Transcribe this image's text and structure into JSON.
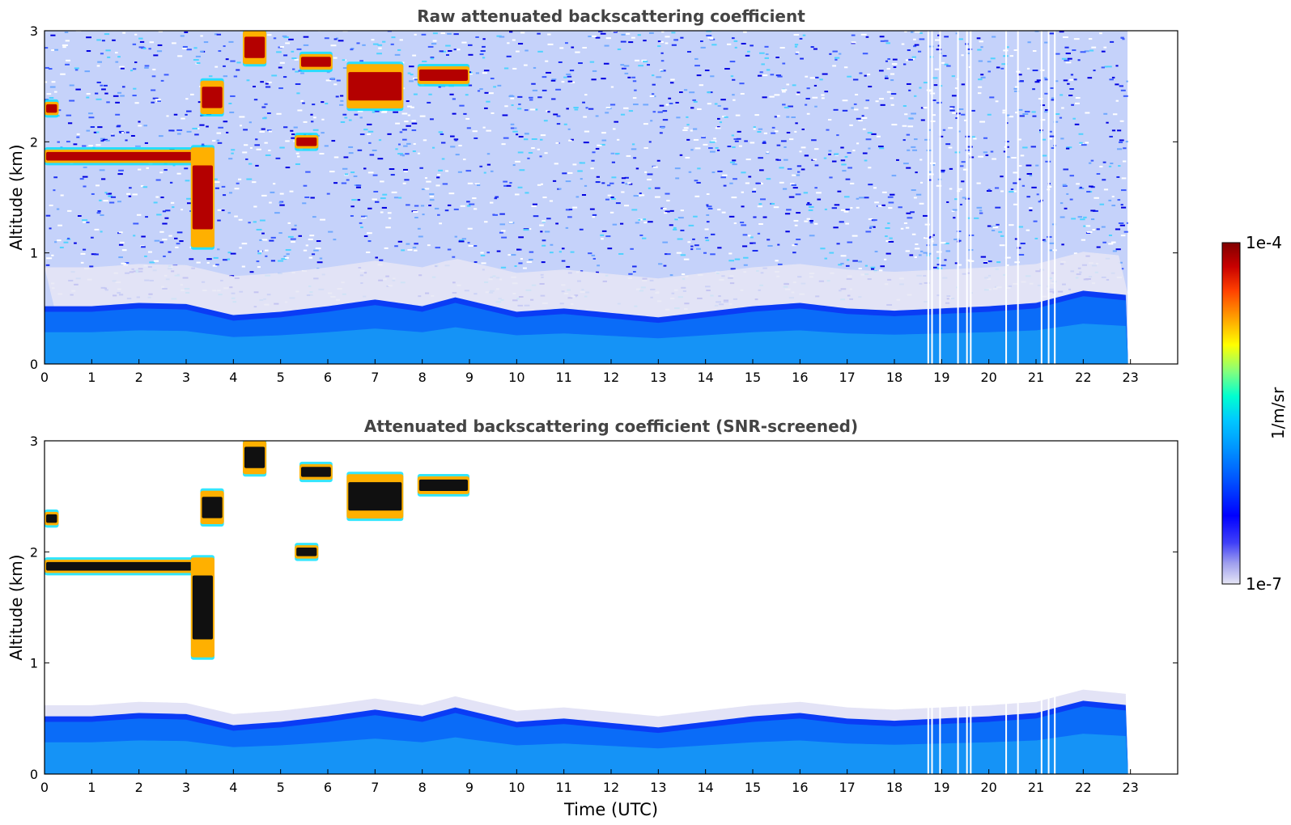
{
  "chart_data": [
    {
      "type": "heatmap",
      "title": "Raw attenuated backscattering coefficient",
      "xlabel": "",
      "ylabel": "Altitude (km)",
      "xlim": [
        0,
        24
      ],
      "ylim": [
        0,
        3
      ],
      "x_ticks": [
        "0",
        "1",
        "2",
        "3",
        "4",
        "5",
        "6",
        "7",
        "8",
        "9",
        "10",
        "11",
        "12",
        "13",
        "14",
        "15",
        "16",
        "17",
        "18",
        "19",
        "20",
        "21",
        "22",
        "23"
      ],
      "y_ticks": [
        "0",
        "1",
        "2",
        "3"
      ],
      "data_end_time_utc": 22.95,
      "boundary_layer_top_km": [
        {
          "t": 0,
          "z": 0.52
        },
        {
          "t": 1,
          "z": 0.52
        },
        {
          "t": 2,
          "z": 0.55
        },
        {
          "t": 3,
          "z": 0.54
        },
        {
          "t": 4,
          "z": 0.44
        },
        {
          "t": 5,
          "z": 0.47
        },
        {
          "t": 6,
          "z": 0.52
        },
        {
          "t": 7,
          "z": 0.58
        },
        {
          "t": 8,
          "z": 0.52
        },
        {
          "t": 8.7,
          "z": 0.6
        },
        {
          "t": 10,
          "z": 0.47
        },
        {
          "t": 11,
          "z": 0.5
        },
        {
          "t": 12,
          "z": 0.46
        },
        {
          "t": 13,
          "z": 0.42
        },
        {
          "t": 14,
          "z": 0.47
        },
        {
          "t": 15,
          "z": 0.52
        },
        {
          "t": 16,
          "z": 0.55
        },
        {
          "t": 17,
          "z": 0.5
        },
        {
          "t": 18,
          "z": 0.48
        },
        {
          "t": 19,
          "z": 0.5
        },
        {
          "t": 20,
          "z": 0.52
        },
        {
          "t": 21,
          "z": 0.55
        },
        {
          "t": 22,
          "z": 0.66
        },
        {
          "t": 22.95,
          "z": 0.62
        }
      ],
      "cloud_layers": [
        {
          "t0": 0.0,
          "t1": 3.15,
          "z": 1.87,
          "thickness": 0.12
        },
        {
          "t0": 0.0,
          "t1": 0.3,
          "z": 2.3,
          "thickness": 0.12
        },
        {
          "t0": 3.1,
          "t1": 3.6,
          "z": 1.5,
          "thickness": 0.9
        },
        {
          "t0": 3.3,
          "t1": 3.8,
          "z": 2.4,
          "thickness": 0.3
        },
        {
          "t0": 4.2,
          "t1": 4.7,
          "z": 2.85,
          "thickness": 0.3
        },
        {
          "t0": 5.3,
          "t1": 5.8,
          "z": 2.0,
          "thickness": 0.12
        },
        {
          "t0": 5.4,
          "t1": 6.1,
          "z": 2.72,
          "thickness": 0.14
        },
        {
          "t0": 6.4,
          "t1": 7.6,
          "z": 2.5,
          "thickness": 0.4
        },
        {
          "t0": 7.9,
          "t1": 9.0,
          "z": 2.6,
          "thickness": 0.16
        }
      ],
      "data_gaps_utc": [
        18.7,
        18.78,
        18.95,
        19.33,
        19.52,
        19.6,
        20.35,
        20.6,
        21.1,
        21.25,
        21.38
      ]
    },
    {
      "type": "heatmap",
      "title": "Attenuated backscattering coefficient (SNR-screened)",
      "xlabel": "Time (UTC)",
      "ylabel": "Altitude (km)",
      "xlim": [
        0,
        24
      ],
      "ylim": [
        0,
        3
      ],
      "x_ticks": [
        "0",
        "1",
        "2",
        "3",
        "4",
        "5",
        "6",
        "7",
        "8",
        "9",
        "10",
        "11",
        "12",
        "13",
        "14",
        "15",
        "16",
        "17",
        "18",
        "19",
        "20",
        "21",
        "22",
        "23"
      ],
      "y_ticks": [
        "0",
        "1",
        "2",
        "3"
      ],
      "data_end_time_utc": 22.95,
      "screening": "SNR-screened"
    }
  ],
  "colorbar": {
    "label": "1/m/sr",
    "max_label": "1e-4",
    "min_label": "1e-7",
    "scale": "log",
    "colors": [
      "#e6e6f5",
      "#b8b8ee",
      "#8a8ae6",
      "#0000ff",
      "#0050ff",
      "#0096ff",
      "#00c8ff",
      "#00ffd0",
      "#80ff80",
      "#ffff00",
      "#ffa000",
      "#ff4000",
      "#c80000",
      "#800000"
    ]
  }
}
